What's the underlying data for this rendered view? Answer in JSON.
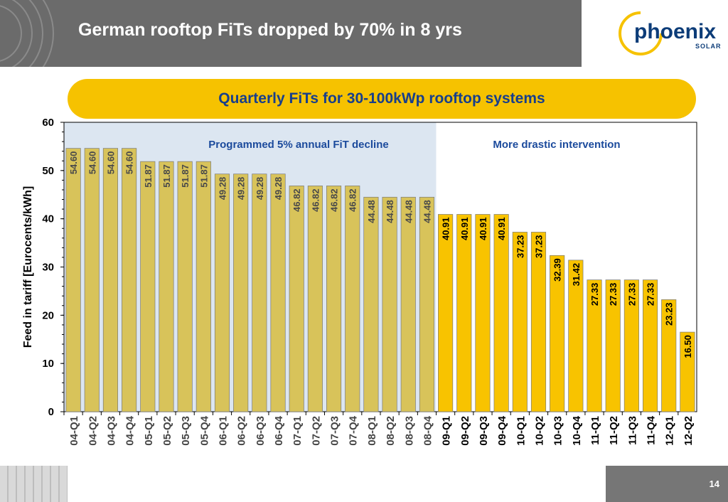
{
  "slide": {
    "title": "German rooftop FiTs dropped by 70% in 8 yrs",
    "page_number": "14"
  },
  "logo": {
    "name": "phoenix",
    "sub": "SOLAR"
  },
  "chart_data": {
    "type": "bar",
    "title": "Quarterly FiTs for 30-100kWp rooftop systems",
    "ylabel": "Feed in tariff [Eurocents/kWh]",
    "xlabel": "",
    "ylim": [
      0,
      60
    ],
    "yticks": [
      0,
      10,
      20,
      30,
      40,
      50,
      60
    ],
    "categories": [
      "04-Q1",
      "04-Q2",
      "04-Q3",
      "04-Q4",
      "05-Q1",
      "05-Q2",
      "05-Q3",
      "05-Q4",
      "06-Q1",
      "06-Q2",
      "06-Q3",
      "06-Q4",
      "07-Q1",
      "07-Q2",
      "07-Q3",
      "07-Q4",
      "08-Q1",
      "08-Q2",
      "08-Q3",
      "08-Q4",
      "09-Q1",
      "09-Q2",
      "09-Q3",
      "09-Q4",
      "10-Q1",
      "10-Q2",
      "10-Q3",
      "10-Q4",
      "11-Q1",
      "11-Q2",
      "11-Q3",
      "11-Q4",
      "12-Q1",
      "12-Q2"
    ],
    "values": [
      54.6,
      54.6,
      54.6,
      54.6,
      51.87,
      51.87,
      51.87,
      51.87,
      49.28,
      49.28,
      49.28,
      49.28,
      46.82,
      46.82,
      46.82,
      46.82,
      44.48,
      44.48,
      44.48,
      44.48,
      40.91,
      40.91,
      40.91,
      40.91,
      37.23,
      37.23,
      32.39,
      31.42,
      27.33,
      27.33,
      27.33,
      27.33,
      23.23,
      16.5
    ],
    "value_labels": [
      "54.60",
      "54.60",
      "54.60",
      "54.60",
      "51.87",
      "51.87",
      "51.87",
      "51.87",
      "49.28",
      "49.28",
      "49.28",
      "49.28",
      "46.82",
      "46.82",
      "46.82",
      "46.82",
      "44.48",
      "44.48",
      "44.48",
      "44.48",
      "40.91",
      "40.91",
      "40.91",
      "40.91",
      "37.23",
      "37.23",
      "32.39",
      "31.42",
      "27.33",
      "27.33",
      "27.33",
      "27.33",
      "23.23",
      "16.50"
    ],
    "regions": [
      {
        "label": "Programmed 5% annual FiT decline",
        "start_index": 0,
        "end_index": 19,
        "background": "#dce6f1",
        "bar_color": "#d8c35a",
        "label_color": "#4a4a4a"
      },
      {
        "label": "More drastic intervention",
        "start_index": 20,
        "end_index": 33,
        "background": "#ffffff",
        "bar_color": "#f8c300",
        "label_color": "#000000"
      }
    ],
    "colors": {
      "annotation_text": "#1b4a9c",
      "axis": "#000000"
    },
    "grid": false
  }
}
